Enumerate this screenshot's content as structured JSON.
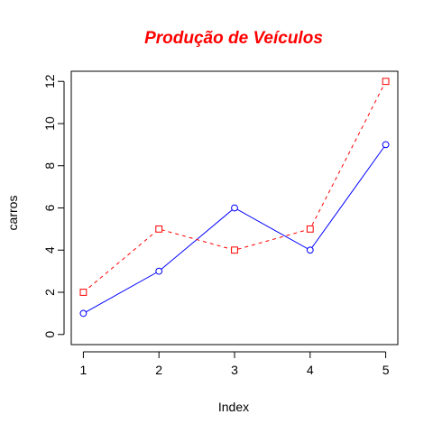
{
  "chart_data": {
    "type": "line",
    "title": "Produção de Veículos",
    "xlabel": "Index",
    "ylabel": "carros",
    "x": [
      1,
      2,
      3,
      4,
      5
    ],
    "xlim": [
      0.84,
      5.16
    ],
    "ylim": [
      -0.48,
      12.48
    ],
    "xticks": [
      1,
      2,
      3,
      4,
      5
    ],
    "yticks": [
      0,
      2,
      4,
      6,
      8,
      10,
      12
    ],
    "grid": false,
    "legend": "none",
    "series": [
      {
        "values": [
          1,
          3,
          6,
          4,
          9
        ],
        "color": "#0000ff",
        "line_style": "solid",
        "marker": "circle"
      },
      {
        "values": [
          2,
          5,
          4,
          5,
          12
        ],
        "color": "#ff0000",
        "line_style": "dashed",
        "marker": "square"
      }
    ],
    "colors": {
      "title": "#ff0000",
      "axis": "#000000",
      "background": "#ffffff"
    }
  }
}
